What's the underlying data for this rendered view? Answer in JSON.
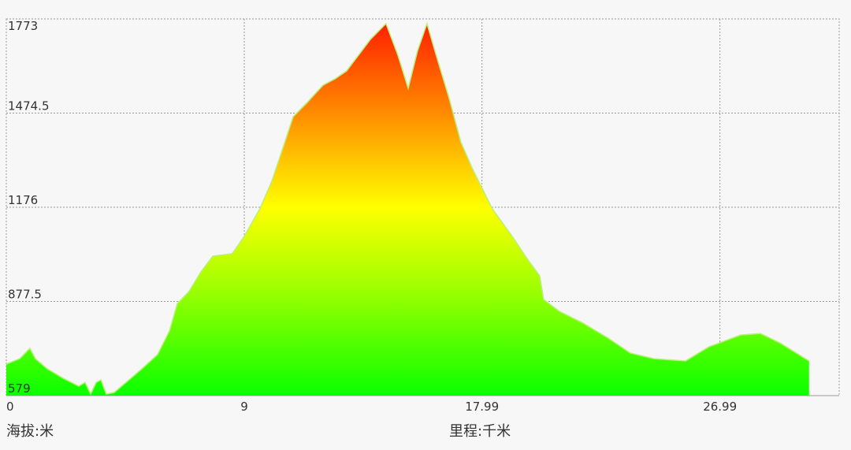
{
  "chart_data": {
    "type": "area",
    "y_label": "海拔:米",
    "x_label": "里程:千米",
    "xlim": [
      0,
      31.5
    ],
    "ylim": [
      579,
      1773
    ],
    "xticks": [
      0,
      9,
      17.99,
      26.99
    ],
    "yticks": [
      579,
      877.5,
      1176,
      1474.5,
      1773
    ],
    "grid": true,
    "x": [
      0,
      0.51,
      0.89,
      1.1,
      1.55,
      2.15,
      2.74,
      2.98,
      3.19,
      3.4,
      3.58,
      3.78,
      4.08,
      4.53,
      5.13,
      5.72,
      6.17,
      6.47,
      6.91,
      7.36,
      7.81,
      8.55,
      9,
      9.59,
      10.04,
      10.49,
      10.85,
      11.38,
      11.98,
      12.43,
      12.87,
      13.32,
      13.77,
      14.36,
      14.81,
      15.2,
      15.55,
      15.91,
      16.3,
      16.75,
      17.19,
      17.64,
      18.38,
      19.13,
      19.73,
      20.17,
      20.32,
      20.92,
      21.81,
      22.71,
      23.6,
      24.49,
      25.69,
      26.58,
      27.77,
      28.52,
      29.26,
      30.36
    ],
    "values": [
      679,
      696,
      729,
      696,
      664,
      634,
      609,
      621,
      584,
      621,
      629,
      584,
      589,
      621,
      664,
      709,
      784,
      871,
      909,
      971,
      1021,
      1029,
      1084,
      1171,
      1258,
      1371,
      1463,
      1508,
      1563,
      1583,
      1608,
      1658,
      1708,
      1758,
      1658,
      1553,
      1671,
      1758,
      1646,
      1521,
      1383,
      1296,
      1171,
      1084,
      1009,
      959,
      884,
      846,
      809,
      764,
      714,
      696,
      689,
      734,
      771,
      776,
      746,
      689
    ]
  }
}
